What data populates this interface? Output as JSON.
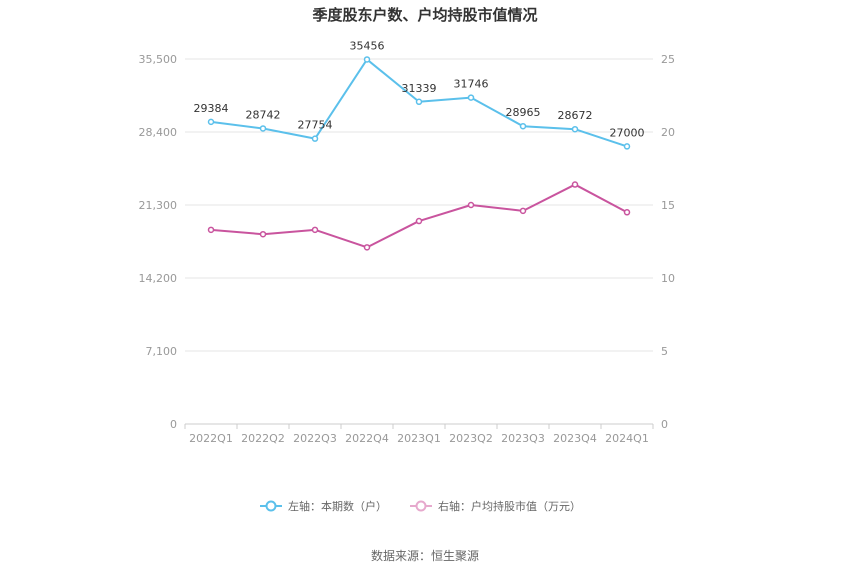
{
  "chart_data": {
    "type": "line",
    "title": "季度股东户数、户均持股市值情况",
    "categories": [
      "2022Q1",
      "2022Q2",
      "2022Q3",
      "2022Q4",
      "2023Q1",
      "2023Q2",
      "2023Q3",
      "2023Q4",
      "2024Q1"
    ],
    "left_axis": {
      "min": 0,
      "max": 35500,
      "ticks": [
        "0",
        "7,100",
        "14,200",
        "21,300",
        "28,400",
        "35,500"
      ],
      "tick_values": [
        0,
        7100,
        14200,
        21300,
        28400,
        35500
      ]
    },
    "right_axis": {
      "min": 0,
      "max": 25,
      "ticks": [
        "0",
        "5",
        "10",
        "15",
        "20",
        "25"
      ],
      "tick_values": [
        0,
        5,
        10,
        15,
        20,
        25
      ]
    },
    "series": [
      {
        "name": "左轴：本期数（户）",
        "axis": "left",
        "color": "#5bc0eb",
        "values": [
          29384,
          28742,
          27754,
          35456,
          31339,
          31746,
          28965,
          28672,
          27000
        ],
        "labels": [
          "29384",
          "28742",
          "27754",
          "35456",
          "31339",
          "31746",
          "28965",
          "28672",
          "27000"
        ]
      },
      {
        "name": "右轴：户均持股市值（万元）",
        "axis": "right",
        "color": "#c9549e",
        "values": [
          13.3,
          13.0,
          13.3,
          12.1,
          13.9,
          15.0,
          14.6,
          16.4,
          14.5
        ]
      }
    ],
    "legend_position": "bottom",
    "grid": true
  },
  "colors": {
    "left_series": "#5bc0eb",
    "right_series": "#c9549e",
    "grid": "#e6e6e6",
    "axis": "#cccccc"
  },
  "source_note": "数据来源：恒生聚源"
}
